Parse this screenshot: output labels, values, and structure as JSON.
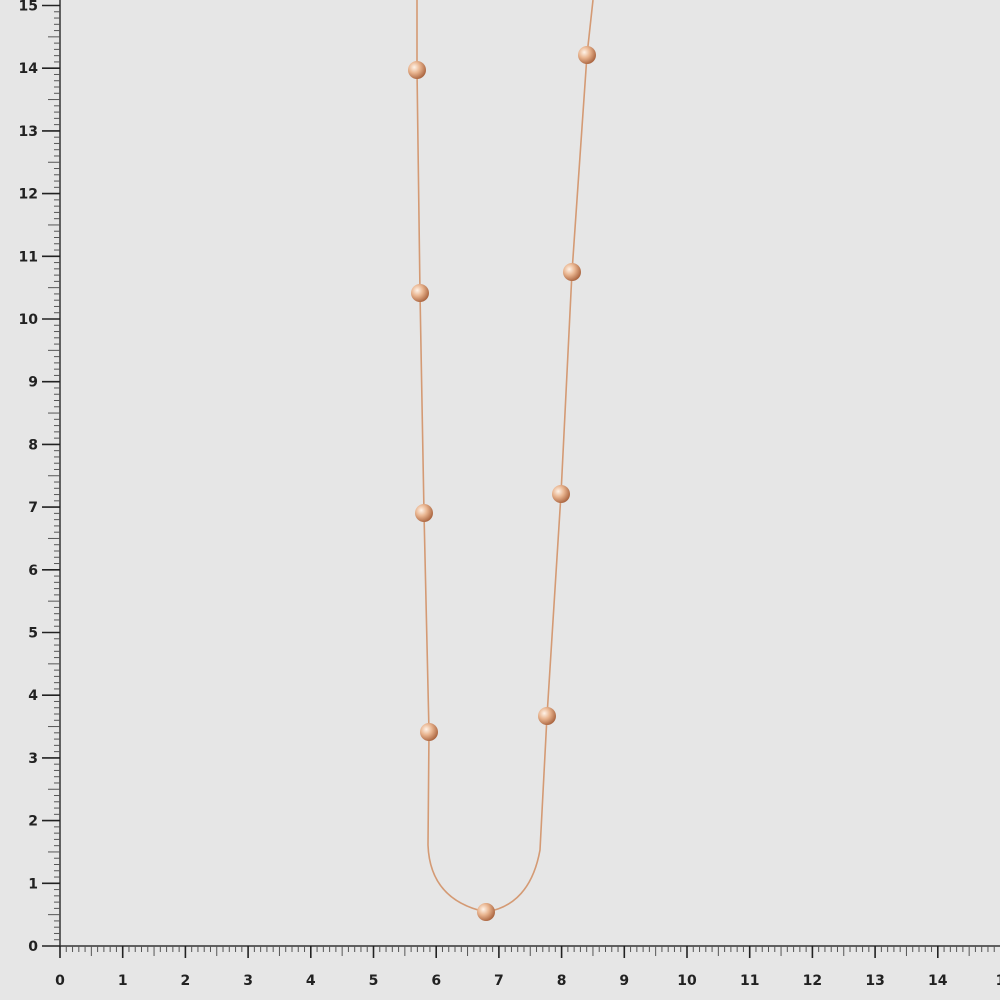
{
  "background_color": "#e6e6e6",
  "chain_color": "#d9a07a",
  "bead_color": "#e8b08a",
  "horizontal_ruler": {
    "labels": [
      "0",
      "1",
      "2",
      "3",
      "4",
      "5",
      "6",
      "7",
      "8",
      "9",
      "10",
      "11",
      "12",
      "13",
      "14",
      "1"
    ]
  },
  "vertical_ruler": {
    "labels": [
      "0",
      "1",
      "2",
      "3",
      "4",
      "5",
      "6",
      "7",
      "8",
      "9",
      "10",
      "11",
      "12",
      "13",
      "14",
      "15"
    ]
  }
}
